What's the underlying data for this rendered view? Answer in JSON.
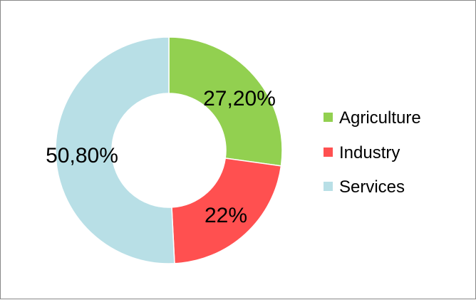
{
  "chart_data": {
    "type": "pie",
    "variant": "donut",
    "categories": [
      "Agriculture",
      "Industry",
      "Services"
    ],
    "values": [
      27.2,
      22,
      50.8
    ],
    "data_labels": [
      "27,20%",
      "22%",
      "50,80%"
    ],
    "colors": [
      "#92d050",
      "#ff5050",
      "#b8dfe6"
    ],
    "legend": {
      "placement": "right",
      "entries": [
        "Agriculture",
        "Industry",
        "Services"
      ]
    },
    "title": "",
    "start_angle_deg": 0,
    "direction": "clockwise"
  }
}
